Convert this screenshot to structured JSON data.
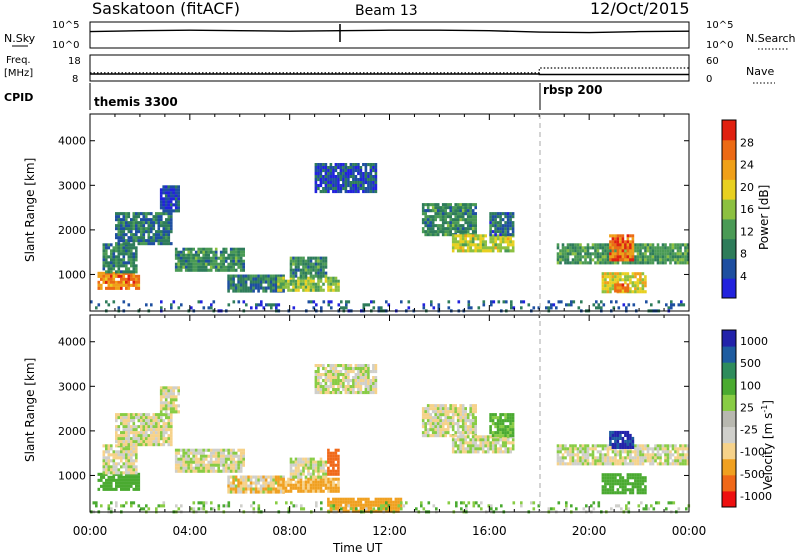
{
  "header": {
    "station": "Saskatoon (fitACF)",
    "beam": "Beam 13",
    "date": "12/Oct/2015"
  },
  "top_panels": {
    "nsky_label": "N.Sky",
    "nsky_ticks": [
      "10^5",
      "10^0"
    ],
    "nsearch_label": "N.Search",
    "nsearch_ticks": [
      "10^5",
      "10^0"
    ],
    "freq_label_1": "Freq.",
    "freq_label_2": "[MHz]",
    "freq_ticks": [
      "18",
      "8"
    ],
    "nave_label": "Nave",
    "nave_ticks": [
      "60",
      "0"
    ],
    "cpid_label": "CPID",
    "cpid_entries": [
      {
        "name": "themis 3300",
        "start_hour": 0
      },
      {
        "name": "rbsp 200",
        "start_hour": 18
      }
    ]
  },
  "time_axis": {
    "label": "Time UT",
    "ticks": [
      "00:00",
      "04:00",
      "08:00",
      "12:00",
      "16:00",
      "20:00",
      "00:00"
    ]
  },
  "colors": {
    "power": [
      "#2222dd",
      "#1e4fa0",
      "#2e7c5a",
      "#4a9a55",
      "#8cc040",
      "#e8d020",
      "#f0a018",
      "#ec6a14",
      "#e02010"
    ],
    "velocity": [
      "#ee1010",
      "#f06818",
      "#f0a020",
      "#f6d28a",
      "#cfcfcb",
      "#b8b8b0",
      "#88cc44",
      "#4aaa30",
      "#2e8c5c",
      "#1e5ca0",
      "#2222aa"
    ]
  },
  "chart_data": [
    {
      "type": "line",
      "title": "N.Sky / N.Search",
      "x": [
        0,
        2,
        4,
        6,
        8,
        10,
        12,
        14,
        16,
        18,
        20,
        22,
        24
      ],
      "y_log10": [
        3.2,
        3.4,
        3.5,
        3.4,
        3.3,
        3.4,
        3.5,
        3.5,
        3.4,
        3.1,
        3.0,
        3.2,
        3.3
      ],
      "yticks": [
        "10^5",
        "10^0"
      ]
    },
    {
      "type": "line",
      "title": "Freq. [MHz] / Nave",
      "series": [
        {
          "name": "Freq. [MHz]",
          "x": [
            0,
            18,
            18,
            24
          ],
          "values": [
            10.5,
            10.5,
            10.3,
            10.3
          ]
        },
        {
          "name": "Nave",
          "x": [
            0,
            18,
            18,
            24
          ],
          "values": [
            18,
            18,
            30,
            30
          ]
        }
      ],
      "freq_ylim": [
        8,
        18
      ],
      "nave_ylim": [
        0,
        60
      ]
    },
    {
      "type": "heatmap",
      "title": "Power [dB]",
      "xlabel": "Time UT",
      "ylabel": "Slant Range [km]",
      "xlim": [
        0,
        24
      ],
      "ylim": [
        180,
        4600
      ],
      "yticks": [
        1000,
        2000,
        3000,
        4000
      ],
      "colorbar": {
        "label": "Power [dB]",
        "ticks": [
          4,
          8,
          12,
          16,
          20,
          24,
          28
        ]
      },
      "regions": [
        {
          "t": [
            0.3,
            2.0
          ],
          "r": [
            720,
            1060
          ],
          "v": 26
        },
        {
          "t": [
            0.5,
            1.9
          ],
          "r": [
            1060,
            1700
          ],
          "v": 11
        },
        {
          "t": [
            1.0,
            3.3
          ],
          "r": [
            1700,
            2400
          ],
          "v": 10
        },
        {
          "t": [
            2.8,
            3.6
          ],
          "r": [
            2400,
            3000
          ],
          "v": 6
        },
        {
          "t": [
            3.4,
            6.2
          ],
          "r": [
            1100,
            1600
          ],
          "v": 12
        },
        {
          "t": [
            5.5,
            7.8
          ],
          "r": [
            600,
            1000
          ],
          "v": 10
        },
        {
          "t": [
            7.5,
            10.0
          ],
          "r": [
            650,
            950
          ],
          "v": 17
        },
        {
          "t": [
            8.0,
            9.5
          ],
          "r": [
            950,
            1400
          ],
          "v": 12
        },
        {
          "t": [
            9.0,
            11.5
          ],
          "r": [
            2850,
            3500
          ],
          "v": 7
        },
        {
          "t": [
            13.3,
            15.5
          ],
          "r": [
            1900,
            2600
          ],
          "v": 12
        },
        {
          "t": [
            14.5,
            17.0
          ],
          "r": [
            1500,
            1900
          ],
          "v": 19
        },
        {
          "t": [
            16.0,
            17.0
          ],
          "r": [
            1900,
            2400
          ],
          "v": 9
        },
        {
          "t": [
            18.7,
            24.0
          ],
          "r": [
            1250,
            1700
          ],
          "v": 13
        },
        {
          "t": [
            20.8,
            21.8
          ],
          "r": [
            1300,
            1900
          ],
          "v": 27
        },
        {
          "t": [
            20.5,
            22.3
          ],
          "r": [
            600,
            1050
          ],
          "v": 20
        },
        {
          "t": [
            21.0,
            21.6
          ],
          "r": [
            650,
            800
          ],
          "v": 29
        },
        {
          "t": [
            0.0,
            24.0
          ],
          "r": [
            180,
            420
          ],
          "v": 8
        }
      ]
    },
    {
      "type": "heatmap",
      "title": "Velocity [m s^-1]",
      "xlabel": "Time UT",
      "ylabel": "Slant Range [km]",
      "xlim": [
        0,
        24
      ],
      "ylim": [
        180,
        4600
      ],
      "yticks": [
        1000,
        2000,
        3000,
        4000
      ],
      "colorbar": {
        "label": "Velocity [m s^-1]",
        "ticks": [
          1000,
          500,
          100,
          25,
          -25,
          -100,
          -500,
          -1000
        ]
      },
      "regions": [
        {
          "t": [
            0.3,
            2.0
          ],
          "r": [
            720,
            1060
          ],
          "v": 120
        },
        {
          "t": [
            0.5,
            1.9
          ],
          "r": [
            1060,
            1700
          ],
          "v": 0
        },
        {
          "t": [
            1.0,
            3.3
          ],
          "r": [
            1700,
            2400
          ],
          "v": 0
        },
        {
          "t": [
            2.8,
            3.6
          ],
          "r": [
            2400,
            3000
          ],
          "v": 0
        },
        {
          "t": [
            3.4,
            6.2
          ],
          "r": [
            1100,
            1600
          ],
          "v": 0
        },
        {
          "t": [
            5.5,
            7.8
          ],
          "r": [
            600,
            1000
          ],
          "v": -30
        },
        {
          "t": [
            7.5,
            10.0
          ],
          "r": [
            650,
            950
          ],
          "v": -80
        },
        {
          "t": [
            8.0,
            9.5
          ],
          "r": [
            950,
            1400
          ],
          "v": 0
        },
        {
          "t": [
            9.5,
            10.0
          ],
          "r": [
            1000,
            1600
          ],
          "v": -600
        },
        {
          "t": [
            9.0,
            11.5
          ],
          "r": [
            2850,
            3500
          ],
          "v": 0
        },
        {
          "t": [
            13.3,
            15.5
          ],
          "r": [
            1900,
            2600
          ],
          "v": 0
        },
        {
          "t": [
            14.5,
            17.0
          ],
          "r": [
            1500,
            1900
          ],
          "v": 0
        },
        {
          "t": [
            16.0,
            17.0
          ],
          "r": [
            1900,
            2400
          ],
          "v": 80
        },
        {
          "t": [
            18.7,
            24.0
          ],
          "r": [
            1250,
            1700
          ],
          "v": 0
        },
        {
          "t": [
            20.8,
            21.8
          ],
          "r": [
            1600,
            2000
          ],
          "v": 700
        },
        {
          "t": [
            20.5,
            22.3
          ],
          "r": [
            600,
            1050
          ],
          "v": 150
        },
        {
          "t": [
            9.5,
            12.5
          ],
          "r": [
            180,
            500
          ],
          "v": -150
        },
        {
          "t": [
            0.0,
            24.0
          ],
          "r": [
            180,
            420
          ],
          "v": 50
        }
      ]
    }
  ]
}
